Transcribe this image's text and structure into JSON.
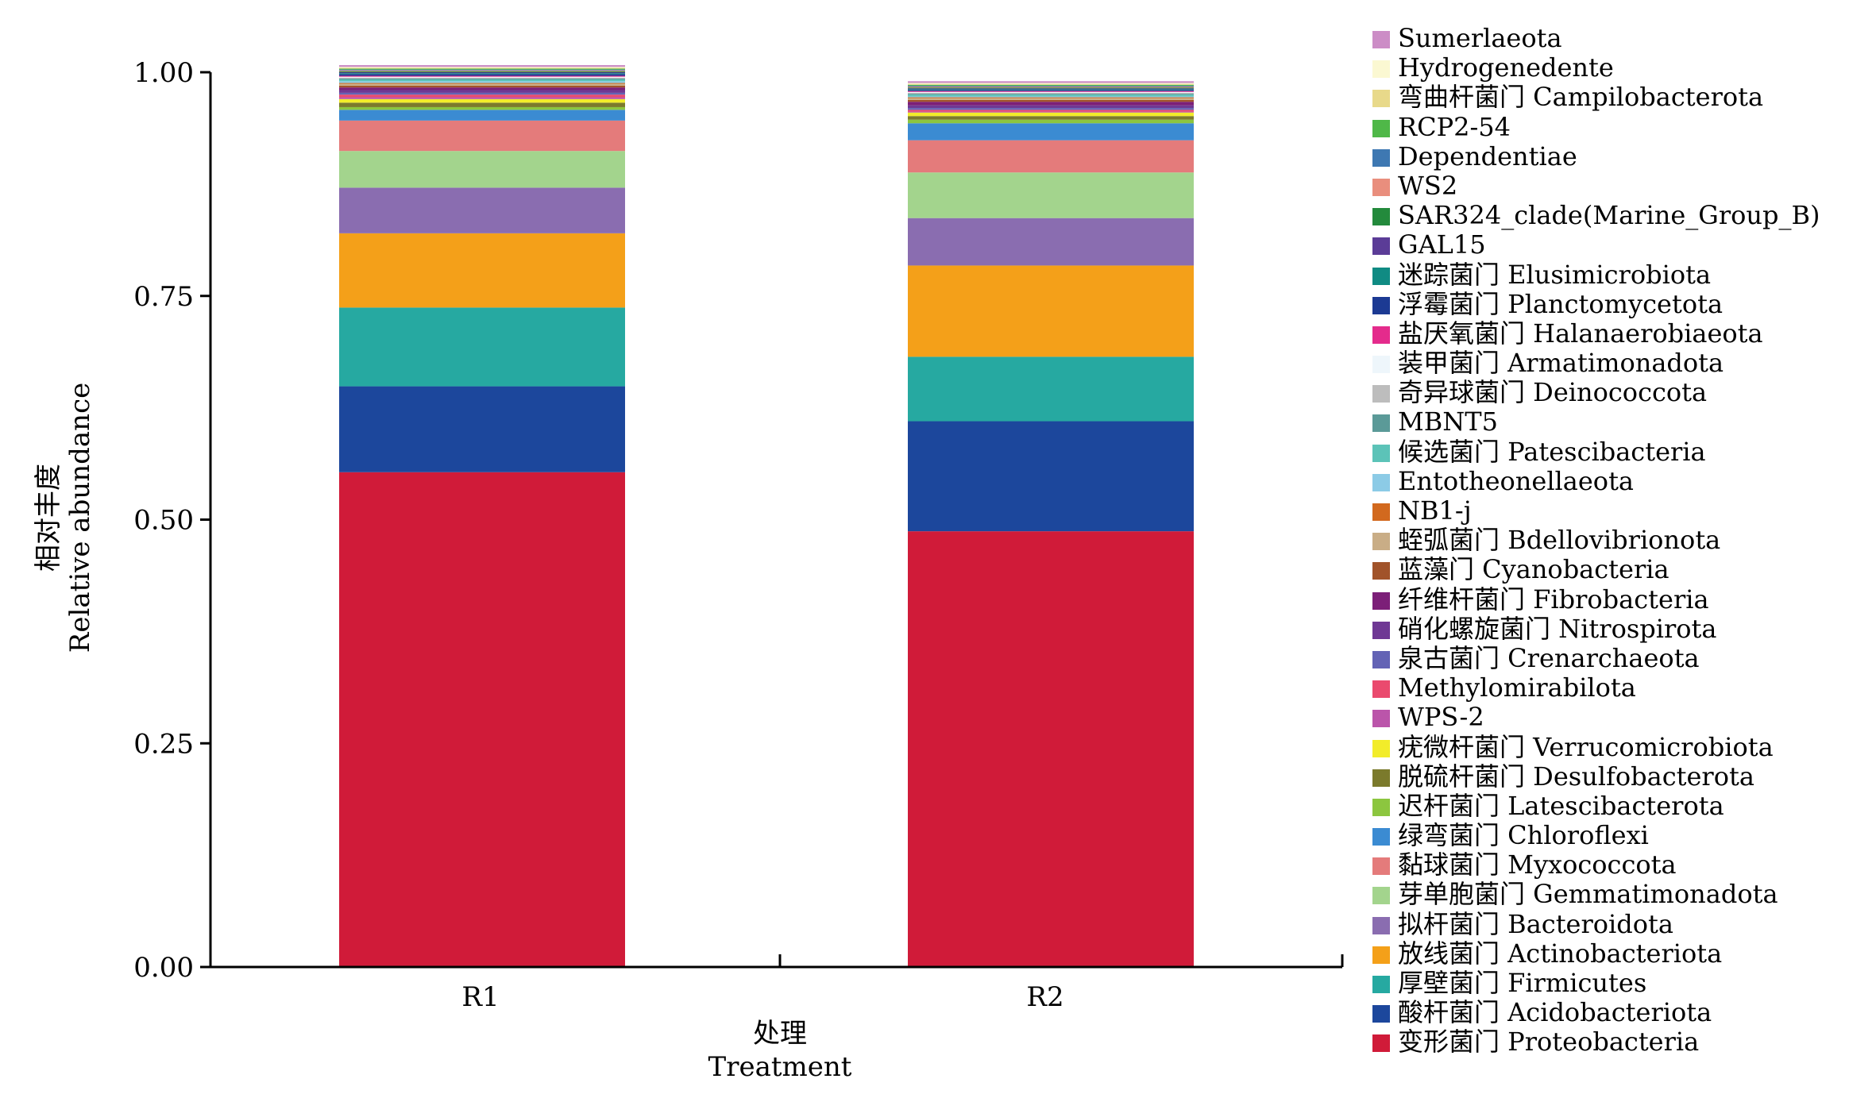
{
  "chart_data": {
    "type": "bar",
    "stacked": true,
    "xlabel_cn": "处理",
    "xlabel_en": "Treatment",
    "ylabel_cn": "相对丰度",
    "ylabel_en": "Relative abundance",
    "categories": [
      "R1",
      "R2"
    ],
    "ylim": [
      0,
      1
    ],
    "yticks": [
      "0.00",
      "0.25",
      "0.50",
      "0.75",
      "1.00"
    ],
    "legend_position": "right",
    "series": [
      {
        "name": "变形菌门 Proteobacteria",
        "color": "#d01b39",
        "values": [
          0.553,
          0.487
        ]
      },
      {
        "name": "酸杆菌门 Acidobacteriota",
        "color": "#1c479c",
        "values": [
          0.096,
          0.123
        ]
      },
      {
        "name": "厚壁菌门 Firmicutes",
        "color": "#26a9a1",
        "values": [
          0.088,
          0.072
        ]
      },
      {
        "name": "放线菌门 Actinobacteriota",
        "color": "#f4a019",
        "values": [
          0.083,
          0.102
        ]
      },
      {
        "name": "拟杆菌门 Bacteroidota",
        "color": "#8a6db0",
        "values": [
          0.051,
          0.053
        ]
      },
      {
        "name": "芽单胞菌门 Gemmatimonadota",
        "color": "#a3d48d",
        "values": [
          0.041,
          0.051
        ]
      },
      {
        "name": "黏球菌门 Myxococcota",
        "color": "#e47b7b",
        "values": [
          0.034,
          0.036
        ]
      },
      {
        "name": "绿弯菌门 Chloroflexi",
        "color": "#3b8bd2",
        "values": [
          0.012,
          0.019
        ]
      },
      {
        "name": "迟杆菌门 Latescibacterota",
        "color": "#8cc63f",
        "values": [
          0.003,
          0.004
        ]
      },
      {
        "name": "脱硫杆菌门 Desulfobacterota",
        "color": "#7b7a2c",
        "values": [
          0.005,
          0.004
        ]
      },
      {
        "name": "疣微杆菌门 Verrucomicrobiota",
        "color": "#f2ec2a",
        "values": [
          0.004,
          0.004
        ]
      },
      {
        "name": "WPS-2",
        "color": "#bb55aa",
        "values": [
          0.002,
          0.001
        ]
      },
      {
        "name": "Methylomirabilota",
        "color": "#ea4a6e",
        "values": [
          0.003,
          0.002
        ]
      },
      {
        "name": "泉古菌门 Crenarchaeota",
        "color": "#6363b5",
        "values": [
          0.002,
          0.002
        ]
      },
      {
        "name": "硝化螺旋菌门 Nitrospirota",
        "color": "#6f3894",
        "values": [
          0.003,
          0.003
        ]
      },
      {
        "name": "纤维杆菌门 Fibrobacteria",
        "color": "#7c1f78",
        "values": [
          0.003,
          0.004
        ]
      },
      {
        "name": "蓝藻门 Cyanobacteria",
        "color": "#a1532a",
        "values": [
          0.002,
          0.002
        ]
      },
      {
        "name": "蛭弧菌门 Bdellovibrionota",
        "color": "#c9ad86",
        "values": [
          0.002,
          0.002
        ]
      },
      {
        "name": "NB1-j",
        "color": "#d2691e",
        "values": [
          0.001,
          0.001
        ]
      },
      {
        "name": "Entotheonellaeota",
        "color": "#8ccbe6",
        "values": [
          0.002,
          0.001
        ]
      },
      {
        "name": "候选菌门 Patescibacteria",
        "color": "#5cc3b8",
        "values": [
          0.002,
          0.002
        ]
      },
      {
        "name": "MBNT5",
        "color": "#5b9a98",
        "values": [
          0.001,
          0.001
        ]
      },
      {
        "name": "奇异球菌门 Deinococcota",
        "color": "#bdbdbd",
        "values": [
          0.001,
          0.001
        ]
      },
      {
        "name": "装甲菌门 Armatimonadota",
        "color": "#eef6fb",
        "values": [
          0.001,
          0.001
        ]
      },
      {
        "name": "盐厌氧菌门 Halanaerobiaeota",
        "color": "#e42b8c",
        "values": [
          0.001,
          0.001
        ]
      },
      {
        "name": "浮霉菌门 Planctomycetota",
        "color": "#1c3a93",
        "values": [
          0.002,
          0.001
        ]
      },
      {
        "name": "迷踪菌门 Elusimicrobiota",
        "color": "#108b83",
        "values": [
          0.001,
          0.001
        ]
      },
      {
        "name": "GAL15",
        "color": "#5b3c97",
        "values": [
          0.001,
          0.001
        ]
      },
      {
        "name": "SAR324_clade(Marine_Group_B)",
        "color": "#238a3c",
        "values": [
          0.001,
          0.001
        ]
      },
      {
        "name": "WS2",
        "color": "#e98e7d",
        "values": [
          0.001,
          0.001
        ]
      },
      {
        "name": "Dependentiae",
        "color": "#3e78b2",
        "values": [
          0.001,
          0.001
        ]
      },
      {
        "name": "RCP2-54",
        "color": "#4fb848",
        "values": [
          0.001,
          0.001
        ]
      },
      {
        "name": "弯曲杆菌门 Campilobacterota",
        "color": "#e8d98a",
        "values": [
          0.001,
          0.001
        ]
      },
      {
        "name": "Hydrogenedente",
        "color": "#fbf8d2",
        "values": [
          0.001,
          0.001
        ]
      },
      {
        "name": "Sumerlaeota",
        "color": "#cc8dc6",
        "values": [
          0.002,
          0.002
        ]
      }
    ]
  }
}
